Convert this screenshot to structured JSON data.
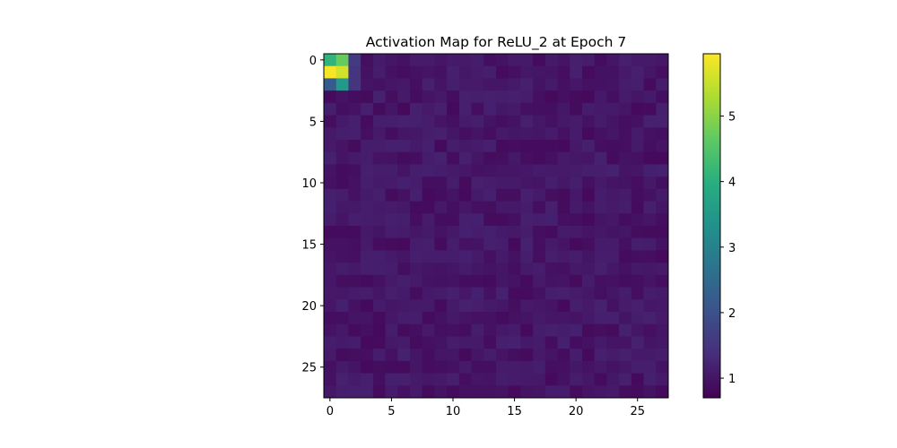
{
  "chart_data": {
    "type": "heatmap",
    "title": "Activation Map for ReLU_2 at Epoch 7",
    "xlabel": "",
    "ylabel": "",
    "rows": 28,
    "cols": 28,
    "x_ticks": [
      0,
      5,
      10,
      15,
      20,
      25
    ],
    "y_ticks": [
      0,
      5,
      10,
      15,
      20,
      25
    ],
    "colormap": "viridis",
    "vmin": 0.7,
    "vmax": 5.95,
    "colorbar_ticks": [
      1,
      2,
      3,
      4,
      5
    ],
    "background_value": 0.95,
    "hotspot_values": [
      [
        0,
        0,
        4.1
      ],
      [
        0,
        1,
        4.7
      ],
      [
        0,
        2,
        1.6
      ],
      [
        1,
        0,
        5.9
      ],
      [
        1,
        1,
        5.6
      ],
      [
        1,
        2,
        1.5
      ],
      [
        2,
        0,
        2.2
      ],
      [
        2,
        1,
        3.5
      ],
      [
        2,
        2,
        1.5
      ]
    ],
    "grid": false
  }
}
